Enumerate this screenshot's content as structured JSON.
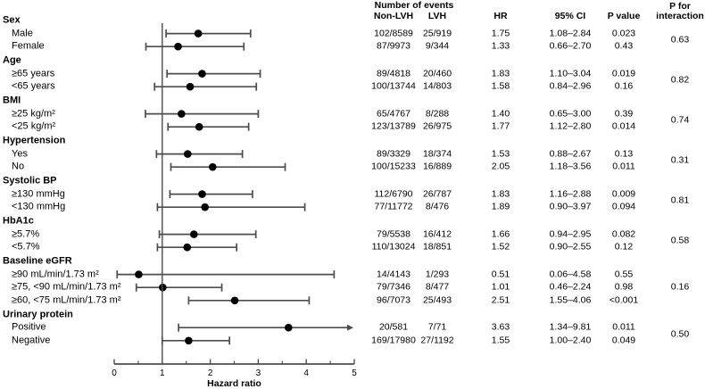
{
  "header": {
    "number_of_events": "Number of events",
    "non_lvh": "Non-LVH",
    "lvh": "LVH",
    "hr": "HR",
    "ci": "95% CI",
    "p_value": "P value",
    "p_interaction": [
      "P for",
      "interaction"
    ]
  },
  "chart_data": {
    "type": "scatter",
    "subtype": "forest-plot",
    "xlabel": "Hazard ratio",
    "xlim": [
      0,
      5
    ],
    "xticks": [
      0,
      1,
      2,
      3,
      4,
      5
    ],
    "minor_tick_step": 0.5,
    "reference_line_x": 1,
    "marker_color": "#000000",
    "line_color": "#4d4d4d",
    "groups": [
      {
        "label": "Sex",
        "p_interaction": "0.63",
        "rows": [
          {
            "label": "Male",
            "non_lvh": "102/8589",
            "lvh": "25/919",
            "hr": 1.75,
            "hr_text": "1.75",
            "ci_low": 1.08,
            "ci_high": 2.84,
            "ci_text": "1.08–2.84",
            "p_value": "0.023"
          },
          {
            "label": "Female",
            "non_lvh": "87/9973",
            "lvh": "9/344",
            "hr": 1.33,
            "hr_text": "1.33",
            "ci_low": 0.66,
            "ci_high": 2.7,
            "ci_text": "0.66–2.70",
            "p_value": "0.43"
          }
        ]
      },
      {
        "label": "Age",
        "p_interaction": "0.82",
        "rows": [
          {
            "label": "≥65 years",
            "non_lvh": "89/4818",
            "lvh": "20/460",
            "hr": 1.83,
            "hr_text": "1.83",
            "ci_low": 1.1,
            "ci_high": 3.04,
            "ci_text": "1.10–3.04",
            "p_value": "0.019"
          },
          {
            "label": "<65 years",
            "non_lvh": "100/13744",
            "lvh": "14/803",
            "hr": 1.58,
            "hr_text": "1.58",
            "ci_low": 0.84,
            "ci_high": 2.96,
            "ci_text": "0.84–2.96",
            "p_value": "0.16"
          }
        ]
      },
      {
        "label": "BMI",
        "p_interaction": "0.74",
        "rows": [
          {
            "label": "≥25 kg/m²",
            "non_lvh": "65/4767",
            "lvh": "8/288",
            "hr": 1.4,
            "hr_text": "1.40",
            "ci_low": 0.65,
            "ci_high": 3.0,
            "ci_text": "0.65–3.00",
            "p_value": "0.39"
          },
          {
            "label": "<25 kg/m²",
            "non_lvh": "123/13789",
            "lvh": "26/975",
            "hr": 1.77,
            "hr_text": "1.77",
            "ci_low": 1.12,
            "ci_high": 2.8,
            "ci_text": "1.12–2.80",
            "p_value": "0.014"
          }
        ]
      },
      {
        "label": "Hypertension",
        "p_interaction": "0.31",
        "rows": [
          {
            "label": "Yes",
            "non_lvh": "89/3329",
            "lvh": "18/374",
            "hr": 1.53,
            "hr_text": "1.53",
            "ci_low": 0.88,
            "ci_high": 2.67,
            "ci_text": "0.88–2.67",
            "p_value": "0.13"
          },
          {
            "label": "No",
            "non_lvh": "100/15233",
            "lvh": "16/889",
            "hr": 2.05,
            "hr_text": "2.05",
            "ci_low": 1.18,
            "ci_high": 3.56,
            "ci_text": "1.18–3.56",
            "p_value": "0.011"
          }
        ]
      },
      {
        "label": "Systolic BP",
        "p_interaction": "0.81",
        "rows": [
          {
            "label": "≥130 mmHg",
            "non_lvh": "112/6790",
            "lvh": "26/787",
            "hr": 1.83,
            "hr_text": "1.83",
            "ci_low": 1.16,
            "ci_high": 2.88,
            "ci_text": "1.16–2.88",
            "p_value": "0.009"
          },
          {
            "label": "<130 mmHg",
            "non_lvh": "77/11772",
            "lvh": "8/476",
            "hr": 1.89,
            "hr_text": "1.89",
            "ci_low": 0.9,
            "ci_high": 3.97,
            "ci_text": "0.90–3.97",
            "p_value": "0.094"
          }
        ]
      },
      {
        "label": "HbA1c",
        "p_interaction": "0.58",
        "rows": [
          {
            "label": "≥5.7%",
            "non_lvh": "79/5538",
            "lvh": "16/412",
            "hr": 1.66,
            "hr_text": "1.66",
            "ci_low": 0.94,
            "ci_high": 2.95,
            "ci_text": "0.94–2.95",
            "p_value": "0.082"
          },
          {
            "label": "<5.7%",
            "non_lvh": "110/13024",
            "lvh": "18/851",
            "hr": 1.52,
            "hr_text": "1.52",
            "ci_low": 0.9,
            "ci_high": 2.55,
            "ci_text": "0.90–2.55",
            "p_value": "0.12"
          }
        ]
      },
      {
        "label": "Baseline eGFR",
        "p_interaction": "0.16",
        "rows": [
          {
            "label": "≥90 mL/min/1.73 m²",
            "non_lvh": "14/4143",
            "lvh": "1/293",
            "hr": 0.51,
            "hr_text": "0.51",
            "ci_low": 0.06,
            "ci_high": 4.58,
            "ci_text": "0.06–4.58",
            "p_value": "0.55"
          },
          {
            "label": "≥75, <90 mL/min/1.73 m²",
            "non_lvh": "79/7346",
            "lvh": "8/477",
            "hr": 1.01,
            "hr_text": "1.01",
            "ci_low": 0.46,
            "ci_high": 2.24,
            "ci_text": "0.46–2.24",
            "p_value": "0.98"
          },
          {
            "label": "≥60, <75 mL/min/1.73 m²",
            "non_lvh": "96/7073",
            "lvh": "25/493",
            "hr": 2.51,
            "hr_text": "2.51",
            "ci_low": 1.55,
            "ci_high": 4.06,
            "ci_text": "1.55–4.06",
            "p_value": "<0.001"
          }
        ]
      },
      {
        "label": "Urinary protein",
        "p_interaction": "0.50",
        "rows": [
          {
            "label": "Positive",
            "non_lvh": "20/581",
            "lvh": "7/71",
            "hr": 3.63,
            "hr_text": "3.63",
            "ci_low": 1.34,
            "ci_high": 9.81,
            "ci_text": "1.34–9.81",
            "p_value": "0.011"
          },
          {
            "label": "Negative",
            "non_lvh": "169/17980",
            "lvh": "27/1192",
            "hr": 1.55,
            "hr_text": "1.55",
            "ci_low": 1.0,
            "ci_high": 2.4,
            "ci_text": "1.00–2.40",
            "p_value": "0.049"
          }
        ]
      }
    ]
  }
}
